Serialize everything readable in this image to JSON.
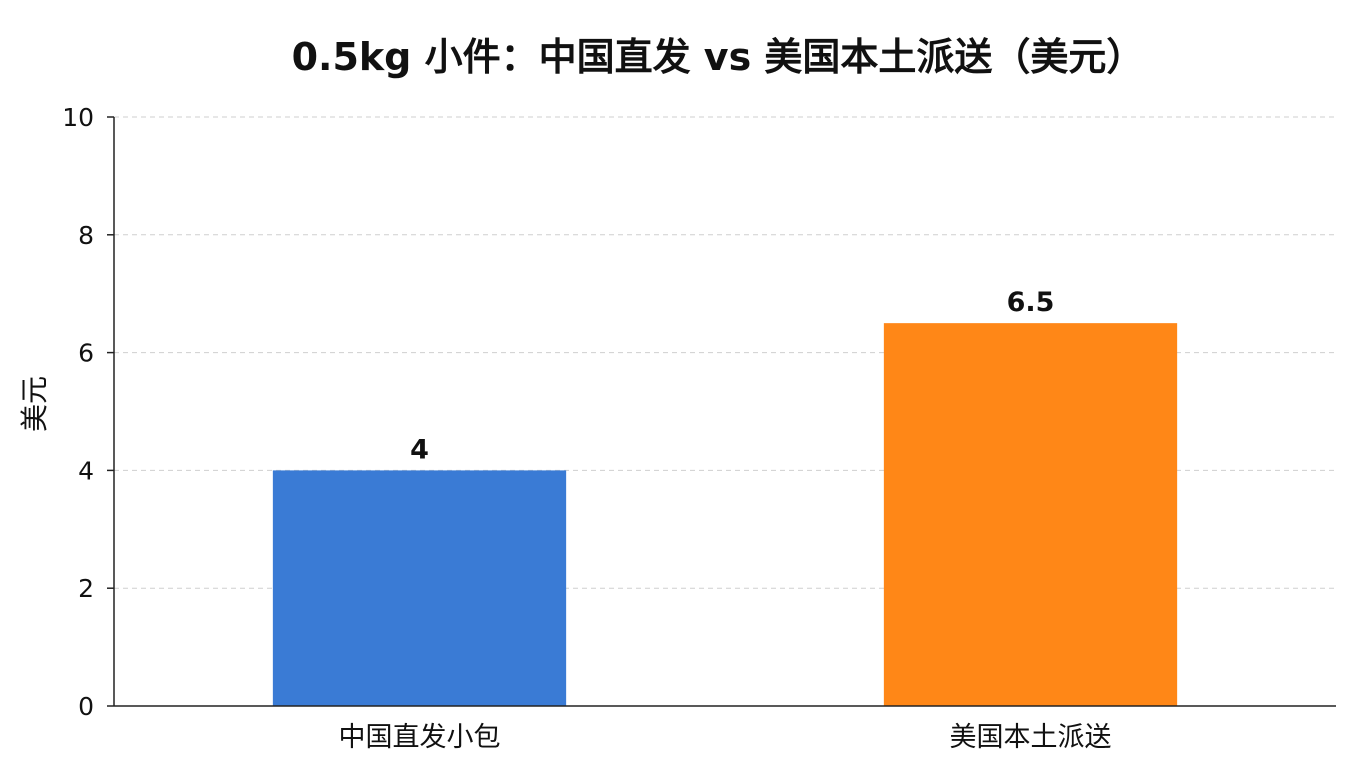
{
  "chart_data": {
    "type": "bar",
    "title": "0.5kg 小件：中国直发 vs 美国本土派送（美元）",
    "xlabel": "",
    "ylabel": "美元",
    "ylim": [
      0,
      10
    ],
    "yticks": [
      0,
      2,
      4,
      6,
      8,
      10
    ],
    "grid": true,
    "categories": [
      "中国直发小包",
      "美国本土派送"
    ],
    "values": [
      4,
      6.5
    ],
    "data_labels": [
      "4",
      "6.5"
    ],
    "colors": [
      "#3a7bd5",
      "#ff8717"
    ]
  }
}
